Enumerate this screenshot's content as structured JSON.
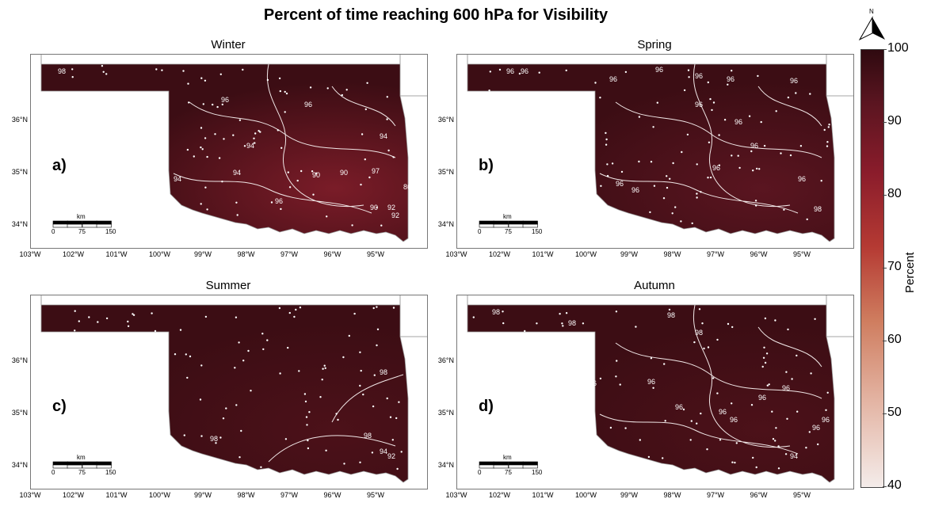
{
  "title": "Percent of time reaching 600 hPa for Visibility",
  "panels": [
    {
      "season": "Winter",
      "tag": "a)",
      "contours": [
        "98",
        "96",
        "96",
        "94",
        "94",
        "94",
        "90",
        "90",
        "97",
        "94",
        "96",
        "92",
        "86",
        "90",
        "92"
      ]
    },
    {
      "season": "Spring",
      "tag": "b)",
      "contours": [
        "96",
        "96",
        "96",
        "96",
        "96",
        "96",
        "96",
        "96",
        "96",
        "96",
        "96",
        "96",
        "96",
        "96",
        "98"
      ]
    },
    {
      "season": "Summer",
      "tag": "c)",
      "contours": [
        "98",
        "98",
        "98",
        "94",
        "92"
      ]
    },
    {
      "season": "Autumn",
      "tag": "d)",
      "contours": [
        "98",
        "98",
        "98",
        "98",
        "96",
        "96",
        "96",
        "96",
        "96",
        "96",
        "96",
        "94",
        "96",
        "96"
      ]
    }
  ],
  "lat_labels": [
    "36°N",
    "35°N",
    "34°N"
  ],
  "lon_labels": [
    "103°W",
    "102°W",
    "101°W",
    "100°W",
    "99°W",
    "98°W",
    "97°W",
    "96°W",
    "95°W"
  ],
  "scale_bar": {
    "unit": "km",
    "ticks": [
      "0",
      "75",
      "150"
    ]
  },
  "colorbar": {
    "label": "Percent",
    "ticks": [
      "100",
      "90",
      "80",
      "70",
      "60",
      "50",
      "40"
    ]
  },
  "north_arrow": "N",
  "colors": {
    "dark": "#3a0c13",
    "mid": "#6a1a24",
    "contour": "#ffffff"
  }
}
